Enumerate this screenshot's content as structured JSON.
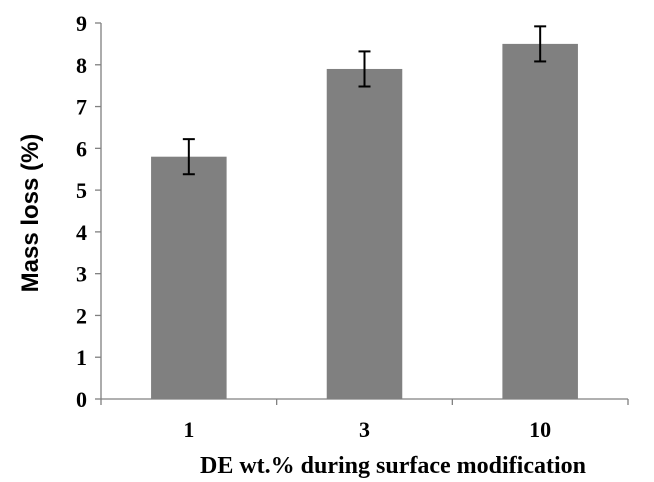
{
  "chart_data": {
    "type": "bar",
    "title": "",
    "xlabel": "DE wt.% during surface modification",
    "ylabel": "Mass loss (%)",
    "categories": [
      "1",
      "3",
      "10"
    ],
    "values": [
      5.8,
      7.9,
      8.5
    ],
    "errors": [
      0.42,
      0.42,
      0.42
    ],
    "ylim": [
      0,
      9
    ],
    "yticks": [
      "0",
      "1",
      "2",
      "3",
      "4",
      "5",
      "6",
      "7",
      "8",
      "9"
    ],
    "grid": false,
    "legend": "none",
    "bar_color": "#808080"
  }
}
